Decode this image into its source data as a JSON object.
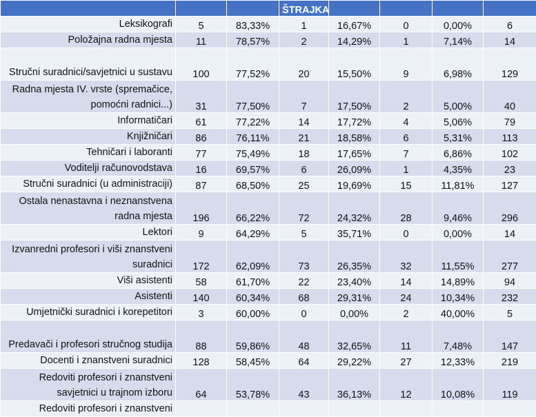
{
  "header": [
    "",
    "",
    "",
    "ŠTRAJKA",
    "",
    "",
    "",
    ""
  ],
  "rows": [
    {
      "label": "Leksikografi",
      "cells": [
        "5",
        "83,33%",
        "1",
        "16,67%",
        "0",
        "0,00%",
        "6"
      ]
    },
    {
      "label": "Položajna radna mjesta",
      "cells": [
        "11",
        "78,57%",
        "2",
        "14,29%",
        "1",
        "7,14%",
        "14"
      ]
    },
    {
      "label": "Stručni suradnici/savjetnici u sustavu",
      "cells": [
        "100",
        "77,52%",
        "20",
        "15,50%",
        "9",
        "6,98%",
        "129"
      ]
    },
    {
      "label": "Radna mjesta IV. vrste (spremačice, pomoćni radnici...)",
      "cells": [
        "31",
        "77,50%",
        "7",
        "17,50%",
        "2",
        "5,00%",
        "40"
      ]
    },
    {
      "label": "Informatičari",
      "cells": [
        "61",
        "77,22%",
        "14",
        "17,72%",
        "4",
        "5,06%",
        "79"
      ]
    },
    {
      "label": "Knjižničari",
      "cells": [
        "86",
        "76,11%",
        "21",
        "18,58%",
        "6",
        "5,31%",
        "113"
      ]
    },
    {
      "label": "Tehničari i laboranti",
      "cells": [
        "77",
        "75,49%",
        "18",
        "17,65%",
        "7",
        "6,86%",
        "102"
      ]
    },
    {
      "label": "Voditelji računovodstava",
      "cells": [
        "16",
        "69,57%",
        "6",
        "26,09%",
        "1",
        "4,35%",
        "23"
      ]
    },
    {
      "label": "Stručni suradnici (u administraciji)",
      "cells": [
        "87",
        "68,50%",
        "25",
        "19,69%",
        "15",
        "11,81%",
        "127"
      ]
    },
    {
      "label": "Ostala nenastavna i neznanstvena radna mjesta",
      "cells": [
        "196",
        "66,22%",
        "72",
        "24,32%",
        "28",
        "9,46%",
        "296"
      ]
    },
    {
      "label": "Lektori",
      "cells": [
        "9",
        "64,29%",
        "5",
        "35,71%",
        "0",
        "0,00%",
        "14"
      ]
    },
    {
      "label": "Izvanredni profesori i viši znanstveni suradnici",
      "cells": [
        "172",
        "62,09%",
        "73",
        "26,35%",
        "32",
        "11,55%",
        "277"
      ]
    },
    {
      "label": "Viši asistenti",
      "cells": [
        "58",
        "61,70%",
        "22",
        "23,40%",
        "14",
        "14,89%",
        "94"
      ]
    },
    {
      "label": "Asistenti",
      "cells": [
        "140",
        "60,34%",
        "68",
        "29,31%",
        "24",
        "10,34%",
        "232"
      ]
    },
    {
      "label": "Umjetnički suradnici i korepetitori",
      "cells": [
        "3",
        "60,00%",
        "0",
        "0,00%",
        "2",
        "40,00%",
        "5"
      ]
    },
    {
      "label": "Predavači i profesori stručnog studija",
      "cells": [
        "88",
        "59,86%",
        "48",
        "32,65%",
        "11",
        "7,48%",
        "147"
      ]
    },
    {
      "label": "Docenti i znanstveni suradnici",
      "cells": [
        "128",
        "58,45%",
        "64",
        "29,22%",
        "27",
        "12,33%",
        "219"
      ]
    },
    {
      "label": "Redoviti profesori i znanstveni savjetnici u trajnom izboru",
      "cells": [
        "64",
        "53,78%",
        "43",
        "36,13%",
        "12",
        "10,08%",
        "119"
      ]
    },
    {
      "label": "Redoviti profesori i znanstveni",
      "cells": [
        "",
        "",
        "",
        "",
        "",
        "",
        ""
      ]
    }
  ]
}
